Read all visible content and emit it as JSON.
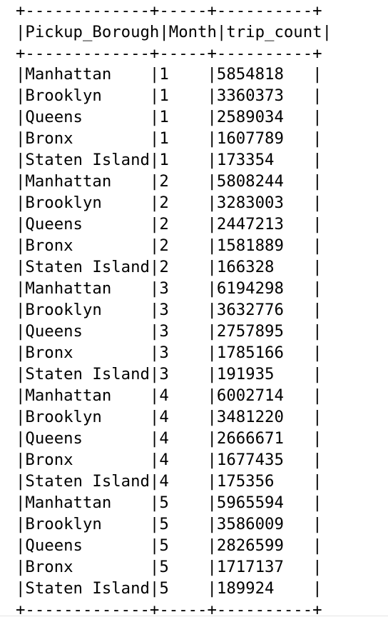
{
  "table": {
    "border_line": "+-------------+-----+----------+",
    "header_line": "|Pickup_Borough|Month|trip_count|",
    "columns": [
      "Pickup_Borough",
      "Month",
      "trip_count"
    ],
    "rows": [
      "|Manhattan    |1    |5854818   |",
      "|Brooklyn     |1    |3360373   |",
      "|Queens       |1    |2589034   |",
      "|Bronx        |1    |1607789   |",
      "|Staten Island|1    |173354    |",
      "|Manhattan    |2    |5808244   |",
      "|Brooklyn     |2    |3283003   |",
      "|Queens       |2    |2447213   |",
      "|Bronx        |2    |1581889   |",
      "|Staten Island|2    |166328    |",
      "|Manhattan    |3    |6194298   |",
      "|Brooklyn     |3    |3632776   |",
      "|Queens       |3    |2757895   |",
      "|Bronx        |3    |1785166   |",
      "|Staten Island|3    |191935    |",
      "|Manhattan    |4    |6002714   |",
      "|Brooklyn     |4    |3481220   |",
      "|Queens       |4    |2666671   |",
      "|Bronx        |4    |1677435   |",
      "|Staten Island|4    |175356    |",
      "|Manhattan    |5    |5965594   |",
      "|Brooklyn     |5    |3586009   |",
      "|Queens       |5    |2826599   |",
      "|Bronx        |5    |1717137   |",
      "|Staten Island|5    |189924    |"
    ]
  }
}
